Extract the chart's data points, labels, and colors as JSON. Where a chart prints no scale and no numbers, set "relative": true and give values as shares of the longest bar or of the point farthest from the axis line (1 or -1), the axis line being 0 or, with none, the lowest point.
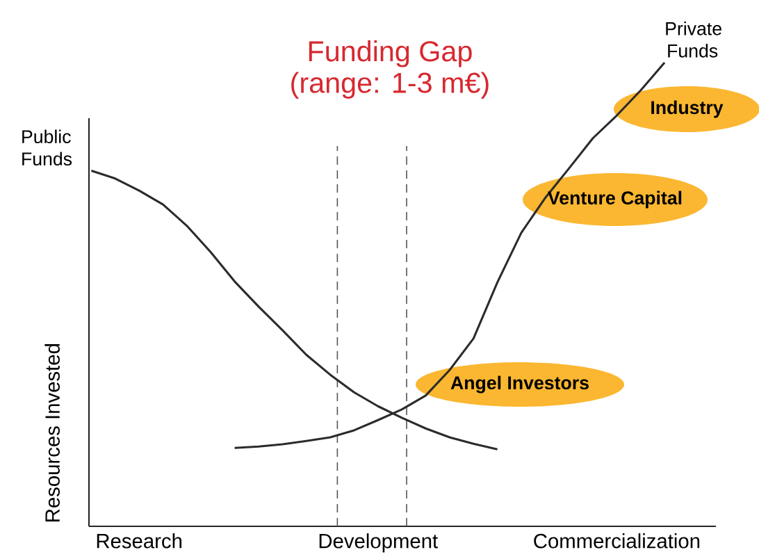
{
  "chart_data": {
    "type": "line",
    "relative": true,
    "title": "Funding Gap",
    "subtitle": "(range: 1-3 m€)",
    "ylabel": "Resources Invested",
    "categories": [
      null,
      null,
      "Research",
      null,
      null,
      null,
      null,
      null,
      null,
      null,
      null,
      null,
      "Development",
      null,
      null,
      null,
      null,
      null,
      null,
      null,
      null,
      null,
      "Commercialization",
      null,
      null
    ],
    "series": [
      {
        "name": "Public Funds",
        "color": "#2b2b2b",
        "values": [
          0.767,
          0.75,
          0.724,
          0.694,
          0.648,
          0.591,
          0.528,
          0.474,
          0.423,
          0.37,
          0.327,
          0.289,
          0.259,
          0.234,
          0.211,
          0.192,
          0.178,
          0.166,
          null,
          null,
          null,
          null,
          null,
          null,
          null
        ]
      },
      {
        "name": "Private Funds",
        "color": "#2b2b2b",
        "values": [
          null,
          null,
          null,
          null,
          null,
          null,
          0.169,
          0.172,
          0.177,
          0.184,
          0.192,
          0.207,
          0.229,
          0.252,
          0.282,
          0.337,
          0.405,
          0.526,
          0.633,
          0.708,
          0.772,
          0.837,
          0.886,
          0.94,
          1.0
        ]
      }
    ],
    "annotations": [
      "Angel Investors",
      "Venture Capital",
      "Industry"
    ]
  }
}
